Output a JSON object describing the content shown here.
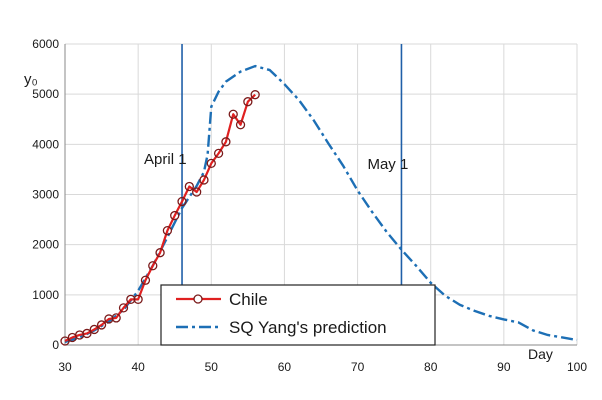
{
  "chart_data": {
    "type": "line",
    "title": "",
    "xlabel": "Day",
    "ylabel": "y₀",
    "xlim": [
      30,
      100
    ],
    "ylim": [
      0,
      6000
    ],
    "x_ticks": [
      30,
      40,
      50,
      60,
      70,
      80,
      90,
      100
    ],
    "y_ticks": [
      0,
      1000,
      2000,
      3000,
      4000,
      5000,
      6000
    ],
    "grid": true,
    "legend_position": "bottom-center",
    "colors": {
      "chile": "#e02020",
      "prediction": "#1d6fb5",
      "vlines": "#1f5fa8",
      "grid": "#d9d9d9",
      "axis": "#888888"
    },
    "vlines": [
      {
        "x": 46,
        "label": "April 1"
      },
      {
        "x": 76,
        "label": "May 1"
      }
    ],
    "series": [
      {
        "name": "Chile",
        "style": "solid-circle-markers",
        "x": [
          30,
          31,
          32,
          33,
          34,
          35,
          36,
          37,
          38,
          39,
          40,
          41,
          42,
          43,
          44,
          45,
          46,
          47,
          48,
          49,
          50,
          51,
          52,
          53,
          54,
          55,
          56
        ],
        "y": [
          80,
          150,
          200,
          230,
          310,
          400,
          520,
          540,
          740,
          910,
          910,
          1290,
          1580,
          1840,
          2280,
          2580,
          2860,
          3160,
          3050,
          3290,
          3620,
          3820,
          4050,
          4600,
          4390,
          4850,
          4990
        ]
      },
      {
        "name": "SQ Yang's prediction",
        "style": "dash-dot",
        "x": [
          30,
          32,
          34,
          36,
          38,
          40,
          42,
          44,
          46,
          48,
          49,
          49.5,
          50,
          51,
          52,
          54,
          56,
          58,
          60,
          62,
          64,
          66,
          68,
          70,
          72,
          74,
          76,
          78,
          80,
          82,
          84,
          86,
          88,
          90,
          92,
          94,
          96,
          98,
          100
        ],
        "y": [
          60,
          150,
          290,
          470,
          700,
          1080,
          1580,
          2150,
          2730,
          3170,
          3450,
          3800,
          4750,
          5050,
          5250,
          5450,
          5560,
          5480,
          5200,
          4880,
          4480,
          4020,
          3580,
          3080,
          2650,
          2250,
          1900,
          1580,
          1240,
          980,
          800,
          680,
          580,
          510,
          450,
          290,
          200,
          150,
          100
        ]
      }
    ]
  }
}
